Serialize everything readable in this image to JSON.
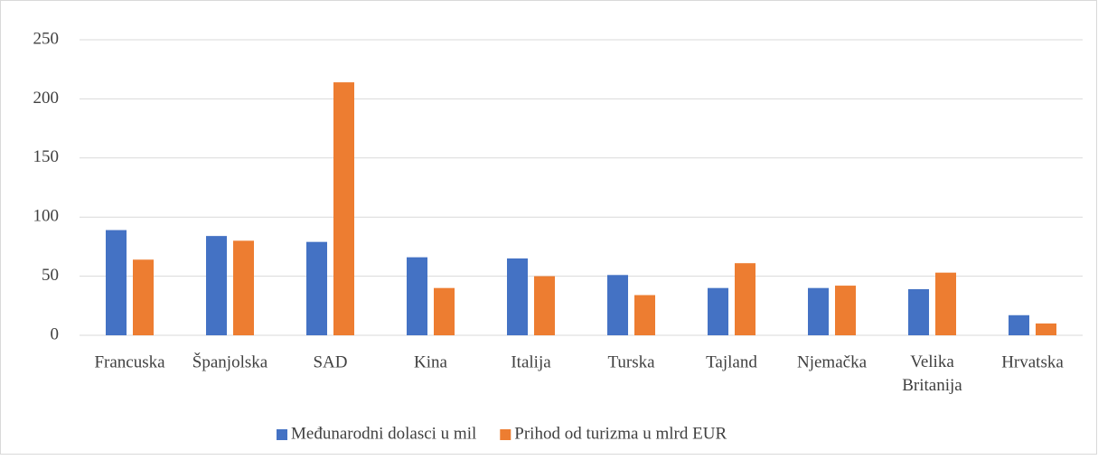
{
  "chart_data": {
    "type": "bar",
    "categories": [
      "Francuska",
      "Španjolska",
      "SAD",
      "Kina",
      "Italija",
      "Turska",
      "Tajland",
      "Njemačka",
      "Velika Britanija",
      "Hrvatska"
    ],
    "series": [
      {
        "name": "Međunarodni dolasci u mil",
        "color": "#4472c4",
        "values": [
          89,
          84,
          79,
          66,
          65,
          51,
          40,
          40,
          39,
          17
        ]
      },
      {
        "name": "Prihod od turizma u mlrd EUR",
        "color": "#ed7d31",
        "values": [
          64,
          80,
          214,
          40,
          50,
          34,
          61,
          42,
          53,
          10
        ]
      }
    ],
    "ylim": [
      0,
      250
    ],
    "yticks": [
      0,
      50,
      100,
      150,
      200,
      250
    ],
    "grid": true,
    "legend": "bottom"
  }
}
